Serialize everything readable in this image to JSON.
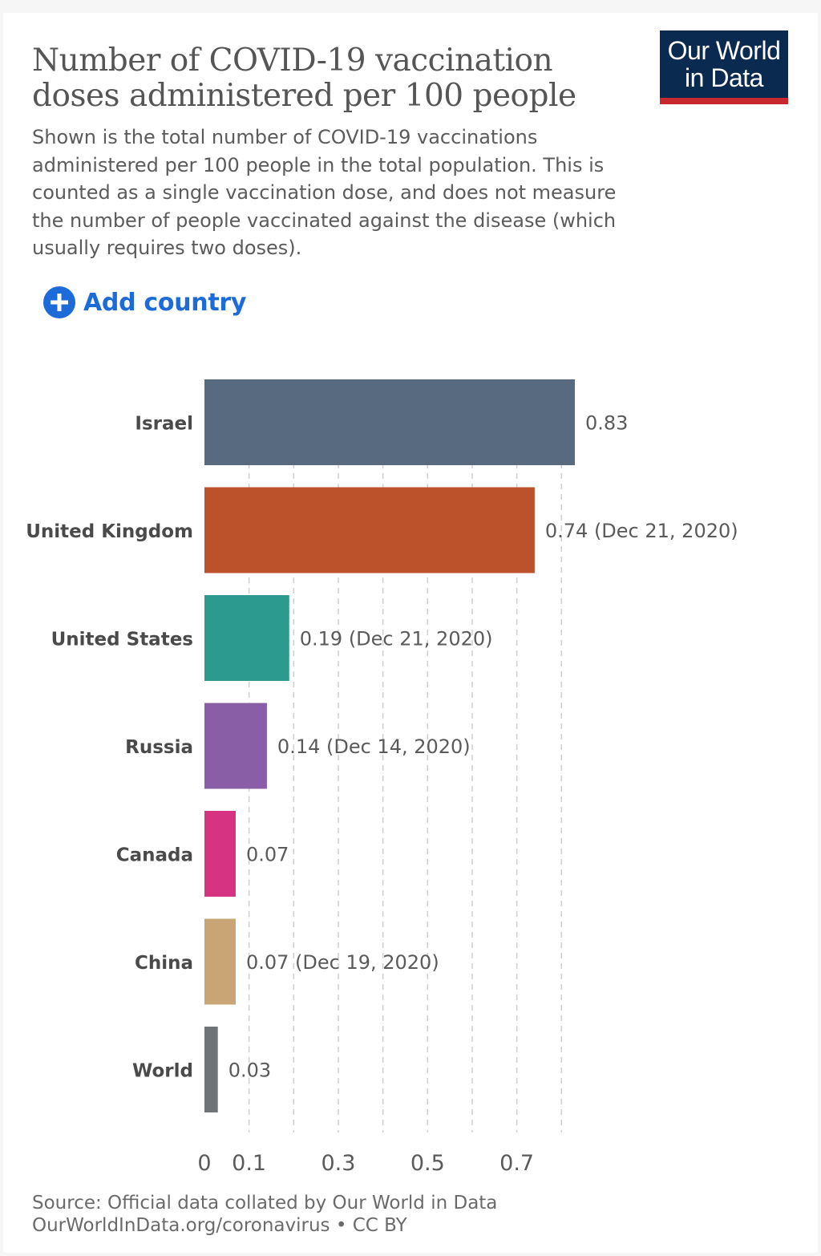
{
  "header": {
    "title": "Number of COVID-19 vaccination doses administered per 100 people",
    "subtitle": "Shown is the total number of COVID-19 vaccinations administered per 100 people in the total population. This is counted as a single vaccination dose, and does not measure the number of people vaccinated against the disease (which usually requires two doses).",
    "logo_line1": "Our World",
    "logo_line2": "in Data"
  },
  "controls": {
    "add_country_label": "Add country"
  },
  "footer": {
    "source": "Source: Official data collated by Our World in Data",
    "link": "OurWorldInData.org/coronavirus • CC BY"
  },
  "chart_data": {
    "type": "bar",
    "orientation": "horizontal",
    "categories": [
      "Israel",
      "United Kingdom",
      "United States",
      "Russia",
      "Canada",
      "China",
      "World"
    ],
    "values": [
      0.83,
      0.74,
      0.19,
      0.14,
      0.07,
      0.07,
      0.03
    ],
    "value_labels": [
      "0.83",
      "0.74 (Dec 21, 2020)",
      "0.19 (Dec 21, 2020)",
      "0.14 (Dec 14, 2020)",
      "0.07",
      "0.07 (Dec 19, 2020)",
      "0.03"
    ],
    "colors": [
      "#586a80",
      "#bb522b",
      "#2c9a8e",
      "#8a5ea6",
      "#d63383",
      "#c9a575",
      "#6f7479"
    ],
    "x_ticks": [
      0,
      0.1,
      0.3,
      0.5,
      0.7
    ],
    "x_tick_labels": [
      "0",
      "0.1",
      "0.3",
      "0.5",
      "0.7"
    ],
    "gridlines": [
      0.1,
      0.2,
      0.3,
      0.4,
      0.5,
      0.6,
      0.7,
      0.8
    ],
    "xlim": [
      0,
      0.83
    ],
    "grid": true,
    "title": "Number of COVID-19 vaccination doses administered per 100 people"
  }
}
